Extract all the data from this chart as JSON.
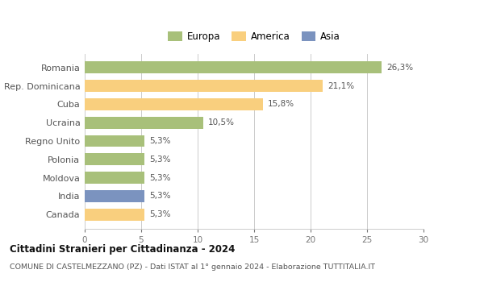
{
  "categories": [
    "Romania",
    "Rep. Dominicana",
    "Cuba",
    "Ucraina",
    "Regno Unito",
    "Polonia",
    "Moldova",
    "India",
    "Canada"
  ],
  "values": [
    26.3,
    21.1,
    15.8,
    10.5,
    5.3,
    5.3,
    5.3,
    5.3,
    5.3
  ],
  "labels": [
    "26,3%",
    "21,1%",
    "15,8%",
    "10,5%",
    "5,3%",
    "5,3%",
    "5,3%",
    "5,3%",
    "5,3%"
  ],
  "bar_colors": [
    "#a8c07a",
    "#f9cf7e",
    "#f9cf7e",
    "#a8c07a",
    "#a8c07a",
    "#a8c07a",
    "#a8c07a",
    "#7b93bf",
    "#f9cf7e"
  ],
  "legend_labels": [
    "Europa",
    "America",
    "Asia"
  ],
  "legend_colors": [
    "#a8c07a",
    "#f9cf7e",
    "#7b93bf"
  ],
  "xlim": [
    0,
    30
  ],
  "xticks": [
    0,
    5,
    10,
    15,
    20,
    25,
    30
  ],
  "title": "Cittadini Stranieri per Cittadinanza - 2024",
  "subtitle": "COMUNE DI CASTELMEZZANO (PZ) - Dati ISTAT al 1° gennaio 2024 - Elaborazione TUTTITALIA.IT",
  "background_color": "#ffffff",
  "grid_color": "#cccccc"
}
